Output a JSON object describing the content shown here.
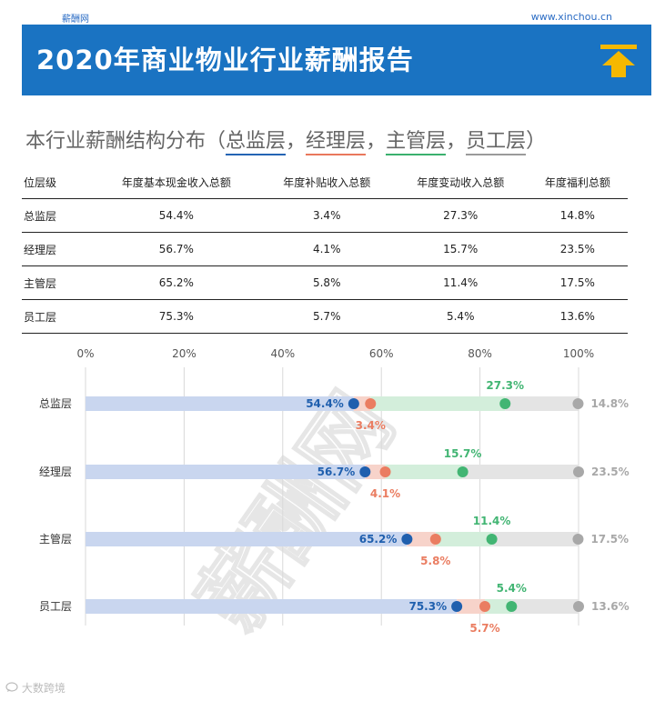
{
  "header": {
    "site_left": "薪酬网",
    "site_right": "www.xinchou.cn",
    "title": "2020年商业物业行业薪酬报告",
    "icon": "up-arrow-icon"
  },
  "subtitle": {
    "prefix": "本行业薪酬结构分布（",
    "items": [
      "总监层",
      "经理层",
      "主管层",
      "员工层"
    ],
    "separator": "，",
    "suffix": "）"
  },
  "table": {
    "headers": [
      "位层级",
      "年度基本现金收入总额",
      "年度补贴收入总额",
      "年度变动收入总额",
      "年度福利总额"
    ],
    "rows": [
      [
        "总监层",
        "54.4%",
        "3.4%",
        "27.3%",
        "14.8%"
      ],
      [
        "经理层",
        "56.7%",
        "4.1%",
        "15.7%",
        "23.5%"
      ],
      [
        "主管层",
        "65.2%",
        "5.8%",
        "11.4%",
        "17.5%"
      ],
      [
        "员工层",
        "75.3%",
        "5.7%",
        "5.4%",
        "13.6%"
      ]
    ]
  },
  "chart_data": {
    "type": "bar",
    "stacked": true,
    "orientation": "horizontal",
    "categories": [
      "总监层",
      "经理层",
      "主管层",
      "员工层"
    ],
    "x_ticks": [
      "0%",
      "20%",
      "40%",
      "60%",
      "80%",
      "100%"
    ],
    "xlim": [
      0,
      100
    ],
    "series": [
      {
        "name": "年度基本现金收入总额",
        "values": [
          54.4,
          56.7,
          65.2,
          75.3
        ],
        "labels": [
          "54.4%",
          "56.7%",
          "65.2%",
          "75.3%"
        ]
      },
      {
        "name": "年度补贴收入总额",
        "values": [
          3.4,
          4.1,
          5.8,
          5.7
        ],
        "labels": [
          "3.4%",
          "4.1%",
          "5.8%",
          "5.7%"
        ]
      },
      {
        "name": "年度变动收入总额",
        "values": [
          27.3,
          15.7,
          11.4,
          5.4
        ],
        "labels": [
          "27.3%",
          "15.7%",
          "11.4%",
          "5.4%"
        ]
      },
      {
        "name": "年度福利总额",
        "values": [
          14.8,
          23.5,
          17.5,
          13.6
        ],
        "labels": [
          "14.8%",
          "23.5%",
          "17.5%",
          "13.6%"
        ]
      }
    ],
    "colors": {
      "base_bar": "#c9d6ef",
      "base_dot": "#1f5fae",
      "base_text": "#1f5fae",
      "allow_bar": "#f7d3ca",
      "allow_dot": "#ea7d61",
      "allow_text": "#ea7d61",
      "var_bar": "#d3eedb",
      "var_dot": "#42b573",
      "var_text": "#42b573",
      "welfare_bar": "#e4e4e4",
      "welfare_dot": "#a8a8a8",
      "welfare_text": "#a8a8a8",
      "grid": "#d9d9d9",
      "tick_text": "#555555"
    },
    "watermark": "薪酬网"
  },
  "footer": {
    "text": "大数跨境"
  }
}
